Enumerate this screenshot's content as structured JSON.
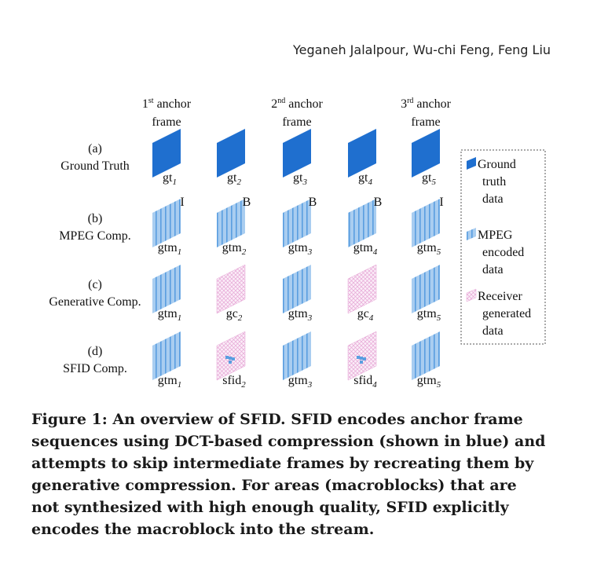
{
  "header": {
    "authors": "Yeganeh Jalalpour, Wu-chi Feng, Feng Liu"
  },
  "figure": {
    "anchor_labels": [
      {
        "ordinal": "1",
        "sup": "st",
        "text": "anchor",
        "line2": "frame"
      },
      {
        "ordinal": "2",
        "sup": "nd",
        "text": "anchor",
        "line2": "frame"
      },
      {
        "ordinal": "3",
        "sup": "rd",
        "text": "anchor",
        "line2": "frame"
      }
    ],
    "rows": [
      {
        "tag": "(a)",
        "name": "Ground Truth",
        "cells": [
          {
            "kind": "gt",
            "base": "gt",
            "sub": "1",
            "mark": ""
          },
          {
            "kind": "gt",
            "base": "gt",
            "sub": "2",
            "mark": ""
          },
          {
            "kind": "gt",
            "base": "gt",
            "sub": "3",
            "mark": ""
          },
          {
            "kind": "gt",
            "base": "gt",
            "sub": "4",
            "mark": ""
          },
          {
            "kind": "gt",
            "base": "gt",
            "sub": "5",
            "mark": ""
          }
        ]
      },
      {
        "tag": "(b)",
        "name": "MPEG Comp.",
        "cells": [
          {
            "kind": "mpeg",
            "base": "gtm",
            "sub": "1",
            "mark": "I"
          },
          {
            "kind": "mpeg",
            "base": "gtm",
            "sub": "2",
            "mark": "B"
          },
          {
            "kind": "mpeg",
            "base": "gtm",
            "sub": "3",
            "mark": "B"
          },
          {
            "kind": "mpeg",
            "base": "gtm",
            "sub": "4",
            "mark": "B"
          },
          {
            "kind": "mpeg",
            "base": "gtm",
            "sub": "5",
            "mark": "I"
          }
        ]
      },
      {
        "tag": "(c)",
        "name": "Generative Comp.",
        "cells": [
          {
            "kind": "mpeg",
            "base": "gtm",
            "sub": "1",
            "mark": ""
          },
          {
            "kind": "gen",
            "base": "gc",
            "sub": "2",
            "mark": ""
          },
          {
            "kind": "mpeg",
            "base": "gtm",
            "sub": "3",
            "mark": ""
          },
          {
            "kind": "gen",
            "base": "gc",
            "sub": "4",
            "mark": ""
          },
          {
            "kind": "mpeg",
            "base": "gtm",
            "sub": "5",
            "mark": ""
          }
        ]
      },
      {
        "tag": "(d)",
        "name": "SFID Comp.",
        "cells": [
          {
            "kind": "mpeg",
            "base": "gtm",
            "sub": "1",
            "mark": ""
          },
          {
            "kind": "sfid",
            "base": "sfid",
            "sub": "2",
            "mark": ""
          },
          {
            "kind": "mpeg",
            "base": "gtm",
            "sub": "3",
            "mark": ""
          },
          {
            "kind": "sfid",
            "base": "sfid",
            "sub": "4",
            "mark": ""
          },
          {
            "kind": "mpeg",
            "base": "gtm",
            "sub": "5",
            "mark": ""
          }
        ]
      }
    ],
    "legend": [
      {
        "kind": "gt",
        "lines": [
          "Ground",
          "truth",
          "data"
        ]
      },
      {
        "kind": "mpeg",
        "lines": [
          "MPEG",
          "encoded",
          "data"
        ]
      },
      {
        "kind": "gen",
        "lines": [
          "Receiver",
          "generated",
          "data"
        ]
      }
    ],
    "colors": {
      "gt": "#1f6fcf",
      "mpeg_fill": "#a9cdf0",
      "mpeg_stripe": "#5a9ee0",
      "gen_fill": "#fbeef8",
      "gen_line": "#e6a6d6",
      "legend_border": "#555555"
    }
  },
  "caption": {
    "lines": [
      "Figure 1: An overview of SFID. SFID encodes anchor frame",
      "sequences using DCT-based compression (shown in blue) and",
      "attempts to skip intermediate frames by recreating them by",
      "generative compression. For areas (macroblocks) that are",
      "not synthesized with high enough quality, SFID explicitly",
      "encodes the macroblock into the stream."
    ]
  }
}
